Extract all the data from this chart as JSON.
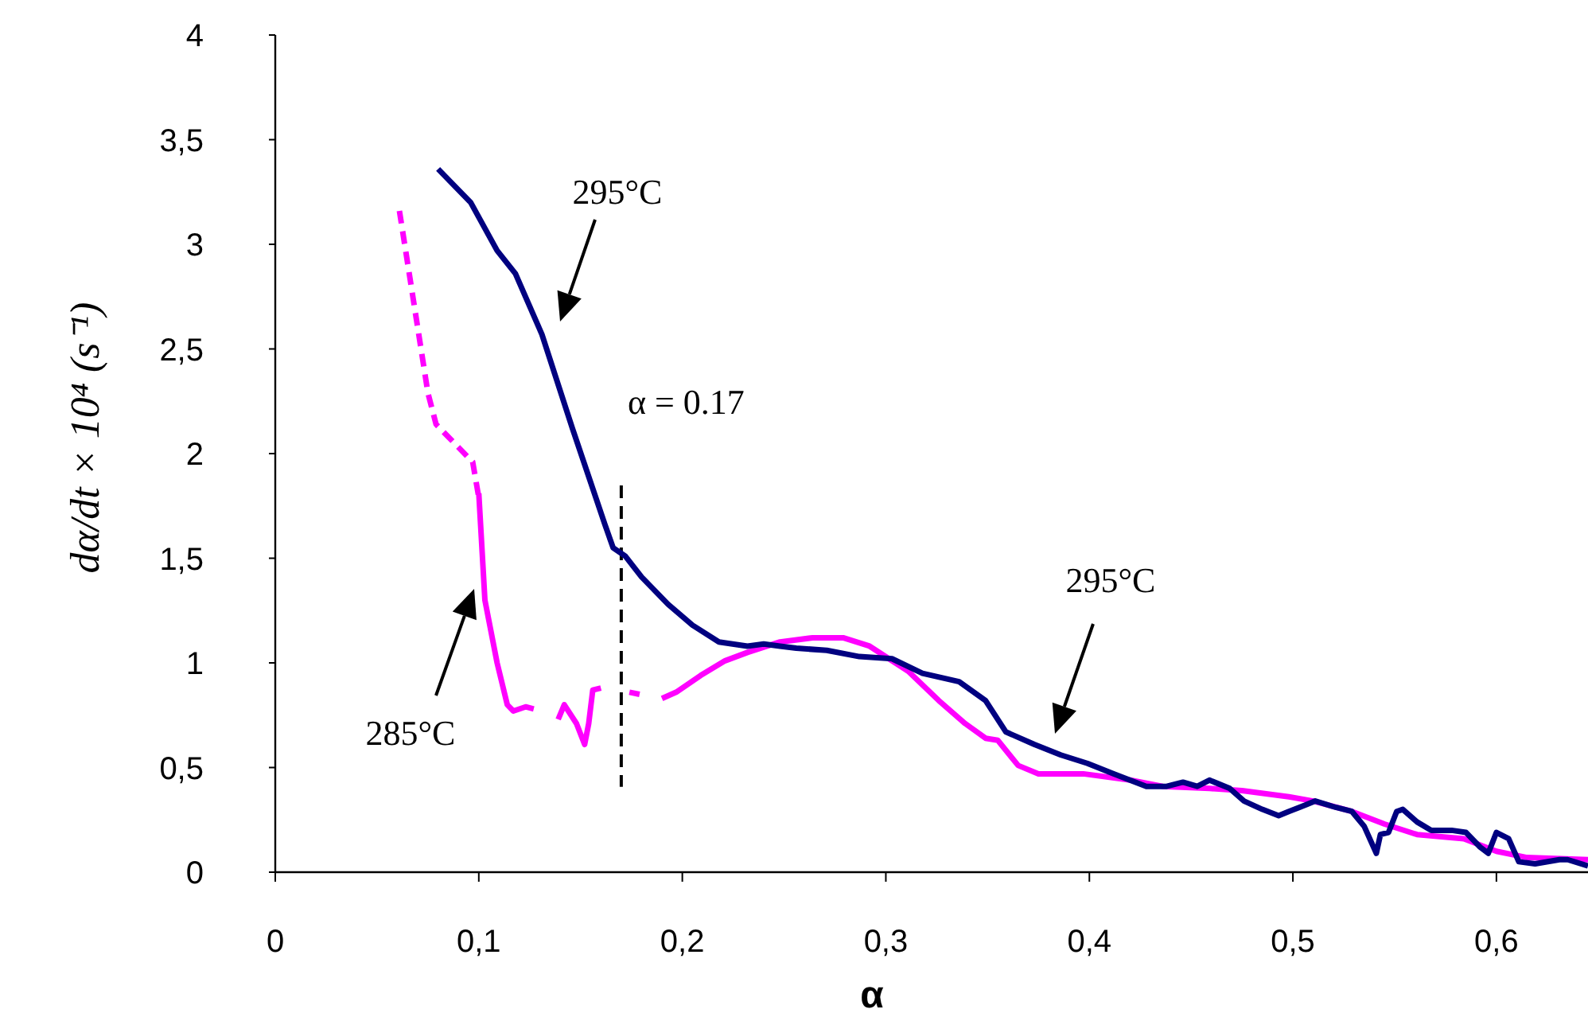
{
  "chart_data": {
    "type": "line",
    "xlabel": "α",
    "ylabel": "dα/dt × 10⁴ (s⁻¹)",
    "xlim": [
      0,
      0.645
    ],
    "ylim": [
      0,
      4
    ],
    "xticks": [
      {
        "value": 0,
        "label": "0"
      },
      {
        "value": 0.1,
        "label": "0,1"
      },
      {
        "value": 0.2,
        "label": "0,2"
      },
      {
        "value": 0.3,
        "label": "0,3"
      },
      {
        "value": 0.4,
        "label": "0,4"
      },
      {
        "value": 0.5,
        "label": "0,5"
      },
      {
        "value": 0.6,
        "label": "0,6"
      }
    ],
    "yticks": [
      {
        "value": 0,
        "label": "0"
      },
      {
        "value": 0.5,
        "label": "0,5"
      },
      {
        "value": 1,
        "label": "1"
      },
      {
        "value": 1.5,
        "label": "1,5"
      },
      {
        "value": 2,
        "label": "2"
      },
      {
        "value": 2.5,
        "label": "2,5"
      },
      {
        "value": 3,
        "label": "3"
      },
      {
        "value": 3.5,
        "label": "3,5"
      },
      {
        "value": 4,
        "label": "4"
      }
    ],
    "grid": false,
    "marker": "none",
    "series": [
      {
        "color": "#000080",
        "line_style": "solid",
        "x": [
          0.08,
          0.096,
          0.109,
          0.118,
          0.131,
          0.146,
          0.162,
          0.166,
          0.172,
          0.18,
          0.193,
          0.205,
          0.218,
          0.232,
          0.24,
          0.248,
          0.256,
          0.271,
          0.287,
          0.303,
          0.318,
          0.336,
          0.349,
          0.359,
          0.373,
          0.386,
          0.399,
          0.412,
          0.428,
          0.438,
          0.446,
          0.453,
          0.459,
          0.469,
          0.476,
          0.485,
          0.493,
          0.498,
          0.506,
          0.511,
          0.521,
          0.529,
          0.535,
          0.541,
          0.543,
          0.547,
          0.551,
          0.554,
          0.561,
          0.568,
          0.578,
          0.585,
          0.592,
          0.596,
          0.6,
          0.606,
          0.611,
          0.619,
          0.631,
          0.635,
          0.645
        ],
        "values": [
          3.36,
          3.2,
          2.97,
          2.86,
          2.57,
          2.12,
          1.66,
          1.55,
          1.51,
          1.41,
          1.28,
          1.18,
          1.1,
          1.08,
          1.09,
          1.08,
          1.07,
          1.06,
          1.03,
          1.02,
          0.95,
          0.91,
          0.82,
          0.67,
          0.61,
          0.56,
          0.52,
          0.47,
          0.41,
          0.41,
          0.43,
          0.41,
          0.44,
          0.4,
          0.34,
          0.3,
          0.27,
          0.29,
          0.32,
          0.34,
          0.31,
          0.29,
          0.22,
          0.09,
          0.18,
          0.19,
          0.29,
          0.3,
          0.24,
          0.2,
          0.2,
          0.19,
          0.12,
          0.09,
          0.19,
          0.16,
          0.05,
          0.04,
          0.06,
          0.06,
          0.03
        ]
      },
      {
        "color": "#ff00ff",
        "line_style": "dashed",
        "x": [
          0.061,
          0.075,
          0.079,
          0.097,
          0.1
        ],
        "values": [
          3.16,
          2.29,
          2.14,
          1.96,
          1.79
        ]
      },
      {
        "color": "#ff00ff",
        "line_style": "solid",
        "x": [
          0.1,
          0.103,
          0.109,
          0.114,
          0.117,
          0.123,
          0.127,
          0.133,
          0.139,
          0.142,
          0.148,
          0.152,
          0.154,
          0.156,
          0.16,
          0.167,
          0.174,
          0.179,
          0.185,
          0.19,
          0.197,
          0.209,
          0.221,
          0.232,
          0.248,
          0.264,
          0.279,
          0.292,
          0.311,
          0.326,
          0.339,
          0.349,
          0.355,
          0.365,
          0.375,
          0.397,
          0.42,
          0.436,
          0.459,
          0.475,
          0.498,
          0.51,
          0.529,
          0.545,
          0.561,
          0.584,
          0.6,
          0.615,
          0.645
        ],
        "values": [
          1.81,
          1.3,
          1.0,
          0.8,
          0.77,
          0.79,
          0.78,
          null,
          0.73,
          0.8,
          0.71,
          0.61,
          0.71,
          0.87,
          0.88,
          null,
          0.86,
          0.85,
          null,
          0.83,
          0.86,
          0.94,
          1.01,
          1.05,
          1.1,
          1.12,
          1.12,
          1.08,
          0.96,
          0.82,
          0.71,
          0.64,
          0.63,
          0.51,
          0.47,
          0.47,
          0.44,
          0.41,
          0.4,
          0.39,
          0.36,
          0.34,
          0.29,
          0.23,
          0.18,
          0.16,
          0.1,
          0.07,
          0.06
        ]
      }
    ],
    "ref_lines": [
      {
        "axis": "x",
        "value": 0.17,
        "label": "α = 0.17",
        "color": "#000000",
        "line_style": "dashed"
      }
    ],
    "annotations": [
      "295°C",
      "295°C",
      "285°C"
    ]
  }
}
